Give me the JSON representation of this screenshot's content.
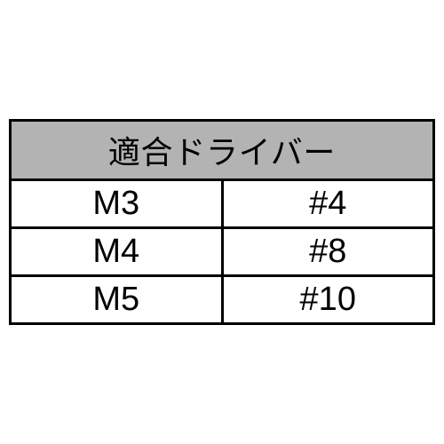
{
  "table": {
    "type": "table",
    "header": "適合ドライバー",
    "header_bg": "#b3b3b3",
    "border_color": "#000000",
    "border_width": 3,
    "background_color": "#ffffff",
    "font_family": "sans-serif",
    "header_fontsize": 36,
    "cell_fontsize": 38,
    "columns": [
      "size",
      "driver"
    ],
    "col_widths": [
      "50%",
      "50%"
    ],
    "rows": [
      {
        "size": "M3",
        "driver": "#4"
      },
      {
        "size": "M4",
        "driver": "#8"
      },
      {
        "size": "M5",
        "driver": "#10"
      }
    ]
  }
}
